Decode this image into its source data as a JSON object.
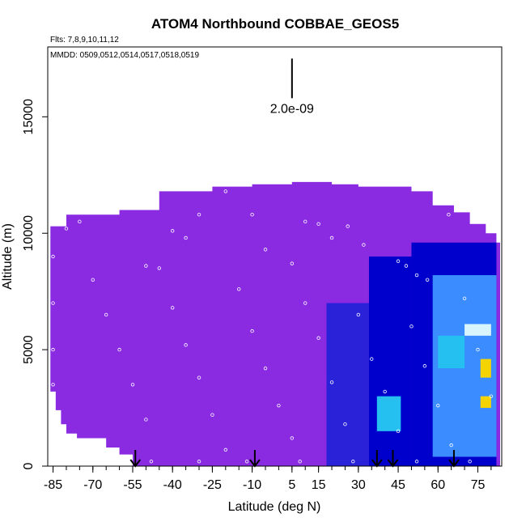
{
  "chart_data": {
    "type": "heatmap",
    "title": "ATOM4 Northbound COBBAE_GEOS5",
    "flights_note": "Flts: 7,8,9,10,11,12",
    "dates_note": "MMDD: 0509,0512,0514,0517,0518,0519",
    "xlabel": "Latitude (deg N)",
    "ylabel": "Altitude (m)",
    "xlim": [
      -87,
      84
    ],
    "ylim": [
      0,
      18000
    ],
    "x_ticks": [
      -85,
      -70,
      -55,
      -40,
      -25,
      -10,
      5,
      15,
      30,
      45,
      60,
      75
    ],
    "y_ticks": [
      0,
      5000,
      10000,
      15000
    ],
    "scale_bar_label": "2.0e-09",
    "scale_bar_range": [
      15800,
      17500
    ],
    "flight_marker_lats": [
      -54,
      -9,
      37,
      43,
      66
    ],
    "colors": {
      "background_field": "#8a2be2",
      "low_field": "#7f2bef",
      "mid_field": "#2a22d8",
      "deep_blue": "#0000cc",
      "light_blue": "#3a8cff",
      "cyan": "#26c0f0",
      "pale": "#d8f4ff",
      "yellow": "#f4d400"
    },
    "ceiling_profile": [
      {
        "lat": -86,
        "alt": 10300
      },
      {
        "lat": -80,
        "alt": 10800
      },
      {
        "lat": -70,
        "alt": 10800
      },
      {
        "lat": -60,
        "alt": 11000
      },
      {
        "lat": -45,
        "alt": 11800
      },
      {
        "lat": -40,
        "alt": 11800
      },
      {
        "lat": -25,
        "alt": 12000
      },
      {
        "lat": -10,
        "alt": 12100
      },
      {
        "lat": 5,
        "alt": 12200
      },
      {
        "lat": 20,
        "alt": 12100
      },
      {
        "lat": 30,
        "alt": 12000
      },
      {
        "lat": 36,
        "alt": 12000
      },
      {
        "lat": 42,
        "alt": 12000
      },
      {
        "lat": 50,
        "alt": 11800
      },
      {
        "lat": 58,
        "alt": 11200
      },
      {
        "lat": 66,
        "alt": 10900
      },
      {
        "lat": 72,
        "alt": 10400
      },
      {
        "lat": 78,
        "alt": 10000
      },
      {
        "lat": 82,
        "alt": 9600
      }
    ],
    "floor_profile": [
      {
        "lat": -86,
        "alt": 3200
      },
      {
        "lat": -84,
        "alt": 2400
      },
      {
        "lat": -82,
        "alt": 1800
      },
      {
        "lat": -80,
        "alt": 1400
      },
      {
        "lat": -76,
        "alt": 1200
      },
      {
        "lat": -65,
        "alt": 800
      },
      {
        "lat": -60,
        "alt": 500
      },
      {
        "lat": -55,
        "alt": 0
      }
    ],
    "regions": [
      {
        "lat0": 18,
        "lat1": 34,
        "alt0": 0,
        "alt1": 7000,
        "color": "mid_field"
      },
      {
        "lat0": 34,
        "lat1": 50,
        "alt0": 0,
        "alt1": 9000,
        "color": "deep_blue"
      },
      {
        "lat0": 50,
        "lat1": 82,
        "alt0": 0,
        "alt1": 9600,
        "color": "deep_blue"
      },
      {
        "lat0": 58,
        "lat1": 82,
        "alt0": 400,
        "alt1": 8200,
        "color": "light_blue"
      },
      {
        "lat0": 37,
        "lat1": 46,
        "alt0": 1500,
        "alt1": 3000,
        "color": "cyan"
      },
      {
        "lat0": 60,
        "lat1": 70,
        "alt0": 4200,
        "alt1": 5600,
        "color": "cyan"
      },
      {
        "lat0": 70,
        "lat1": 80,
        "alt0": 5600,
        "alt1": 6100,
        "color": "pale"
      },
      {
        "lat0": 76,
        "lat1": 80,
        "alt0": 3800,
        "alt1": 4600,
        "color": "yellow"
      },
      {
        "lat0": 76,
        "lat1": 80,
        "alt0": 2500,
        "alt1": 3000,
        "color": "yellow"
      }
    ],
    "sample_points": [
      {
        "lat": -80,
        "alt": 10200
      },
      {
        "lat": -75,
        "alt": 10500
      },
      {
        "lat": -70,
        "alt": 10900
      },
      {
        "lat": -62,
        "alt": 11000
      },
      {
        "lat": -55,
        "alt": 11300
      },
      {
        "lat": -40,
        "alt": 10100
      },
      {
        "lat": -35,
        "alt": 9800
      },
      {
        "lat": -30,
        "alt": 10800
      },
      {
        "lat": -20,
        "alt": 11800
      },
      {
        "lat": -10,
        "alt": 10800
      },
      {
        "lat": -5,
        "alt": 9300
      },
      {
        "lat": 5,
        "alt": 8700
      },
      {
        "lat": 10,
        "alt": 10500
      },
      {
        "lat": 15,
        "alt": 10400
      },
      {
        "lat": 20,
        "alt": 9800
      },
      {
        "lat": 26,
        "alt": 10300
      },
      {
        "lat": 32,
        "alt": 9500
      },
      {
        "lat": 45,
        "alt": 8800
      },
      {
        "lat": 48,
        "alt": 8600
      },
      {
        "lat": 52,
        "alt": 8200
      },
      {
        "lat": 56,
        "alt": 8000
      },
      {
        "lat": 64,
        "alt": 10800
      },
      {
        "lat": 70,
        "alt": 11000
      },
      {
        "lat": -85,
        "alt": 9000
      },
      {
        "lat": -85,
        "alt": 7000
      },
      {
        "lat": -85,
        "alt": 5000
      },
      {
        "lat": -85,
        "alt": 3500
      },
      {
        "lat": -70,
        "alt": 8000
      },
      {
        "lat": -65,
        "alt": 6500
      },
      {
        "lat": -60,
        "alt": 5000
      },
      {
        "lat": -55,
        "alt": 3500
      },
      {
        "lat": -50,
        "alt": 2000
      },
      {
        "lat": -45,
        "alt": 8500
      },
      {
        "lat": -40,
        "alt": 6800
      },
      {
        "lat": -35,
        "alt": 5200
      },
      {
        "lat": -30,
        "alt": 3800
      },
      {
        "lat": -25,
        "alt": 2200
      },
      {
        "lat": -20,
        "alt": 700
      },
      {
        "lat": -15,
        "alt": 7600
      },
      {
        "lat": -10,
        "alt": 5800
      },
      {
        "lat": -5,
        "alt": 4200
      },
      {
        "lat": 0,
        "alt": 2600
      },
      {
        "lat": 5,
        "alt": 1200
      },
      {
        "lat": 10,
        "alt": 7000
      },
      {
        "lat": 15,
        "alt": 5500
      },
      {
        "lat": 20,
        "alt": 3600
      },
      {
        "lat": 25,
        "alt": 1800
      },
      {
        "lat": 30,
        "alt": 6500
      },
      {
        "lat": 35,
        "alt": 4600
      },
      {
        "lat": 40,
        "alt": 3200
      },
      {
        "lat": 45,
        "alt": 1500
      },
      {
        "lat": 50,
        "alt": 6000
      },
      {
        "lat": 55,
        "alt": 4300
      },
      {
        "lat": 60,
        "alt": 2600
      },
      {
        "lat": 65,
        "alt": 900
      },
      {
        "lat": 70,
        "alt": 7200
      },
      {
        "lat": 75,
        "alt": 5000
      },
      {
        "lat": 80,
        "alt": 3000
      },
      {
        "lat": -50,
        "alt": 8600
      },
      {
        "lat": -48,
        "alt": 200
      },
      {
        "lat": -30,
        "alt": 200
      },
      {
        "lat": -12,
        "alt": 200
      },
      {
        "lat": 8,
        "alt": 200
      },
      {
        "lat": 28,
        "alt": 200
      },
      {
        "lat": 52,
        "alt": 200
      },
      {
        "lat": 72,
        "alt": 200
      }
    ]
  }
}
